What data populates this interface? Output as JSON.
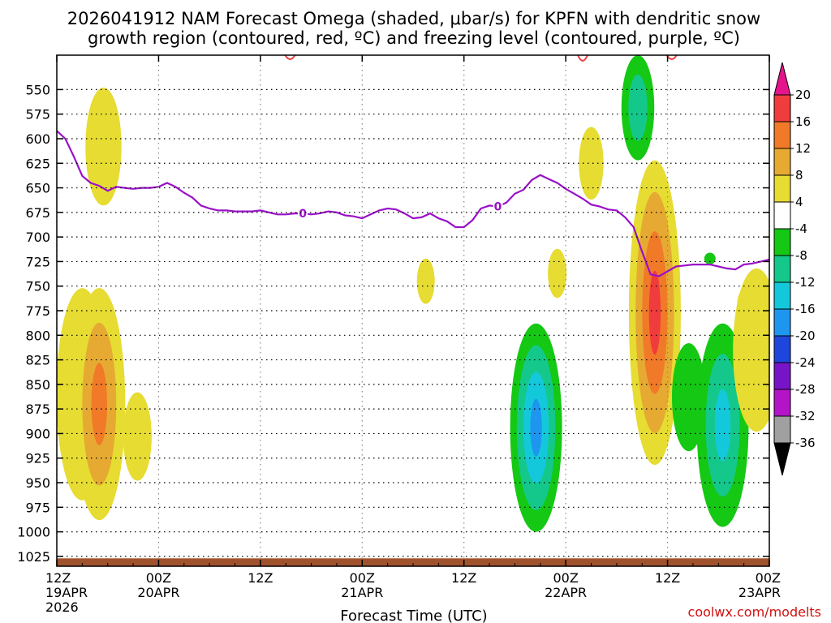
{
  "chart_data": {
    "type": "heatmap",
    "title_line1": "2026041912 NAM Forecast Omega (shaded, μbar/s) for KPFN with dendritic snow",
    "title_line2": "growth region (contoured, red, ºC) and freezing level (contoured, purple, ºC)",
    "xlabel": "Forecast Time (UTC)",
    "credit": "coolwx.com/modelts",
    "y_axis": {
      "unit": "hPa",
      "range": [
        1035,
        515
      ],
      "ticks": [
        550,
        575,
        600,
        625,
        650,
        675,
        700,
        725,
        750,
        775,
        800,
        825,
        850,
        875,
        900,
        925,
        950,
        975,
        1000,
        1025
      ]
    },
    "x_axis": {
      "unit": "forecast hours",
      "range": [
        0,
        84
      ],
      "ticks": [
        {
          "hour": 0,
          "line1": "12Z",
          "line2": "19APR",
          "line3": "2026"
        },
        {
          "hour": 12,
          "line1": "00Z",
          "line2": "20APR",
          "line3": ""
        },
        {
          "hour": 24,
          "line1": "12Z",
          "line2": "",
          "line3": ""
        },
        {
          "hour": 36,
          "line1": "00Z",
          "line2": "21APR",
          "line3": ""
        },
        {
          "hour": 48,
          "line1": "12Z",
          "line2": "",
          "line3": ""
        },
        {
          "hour": 60,
          "line1": "00Z",
          "line2": "22APR",
          "line3": ""
        },
        {
          "hour": 72,
          "line1": "12Z",
          "line2": "",
          "line3": ""
        },
        {
          "hour": 84,
          "line1": "00Z",
          "line2": "23APR",
          "line3": ""
        }
      ]
    },
    "colorbar": {
      "labels": [
        "20",
        "16",
        "12",
        "8",
        "4",
        "-4",
        "-8",
        "-12",
        "-16",
        "-20",
        "-24",
        "-28",
        "-32",
        "-36"
      ],
      "bins": [
        {
          "range": [
            16,
            20
          ],
          "color": "#f03c3c"
        },
        {
          "range": [
            12,
            16
          ],
          "color": "#f07a28"
        },
        {
          "range": [
            8,
            12
          ],
          "color": "#e6aa32"
        },
        {
          "range": [
            4,
            8
          ],
          "color": "#e6dc32"
        },
        {
          "range": [
            -4,
            4
          ],
          "color": "#ffffff"
        },
        {
          "range": [
            -8,
            -4
          ],
          "color": "#14c814"
        },
        {
          "range": [
            -12,
            -8
          ],
          "color": "#14c88c"
        },
        {
          "range": [
            -16,
            -12
          ],
          "color": "#14c8dc"
        },
        {
          "range": [
            -20,
            -16
          ],
          "color": "#1e96f0"
        },
        {
          "range": [
            -24,
            -20
          ],
          "color": "#1e46dc"
        },
        {
          "range": [
            -28,
            -24
          ],
          "color": "#7814c8"
        },
        {
          "range": [
            -32,
            -28
          ],
          "color": "#b414c8"
        },
        {
          "range": [
            -36,
            -32
          ],
          "color": "#a0a0a0"
        }
      ],
      "top_arrow_color": "#e6148c",
      "bottom_arrow_color": "#000000"
    },
    "omega_features": [
      {
        "hour": 5.5,
        "p_top": 548,
        "p_bottom": 668,
        "peak": 6
      },
      {
        "hour": 3.0,
        "p_top": 752,
        "p_bottom": 968,
        "peak": 6
      },
      {
        "hour": 5.0,
        "p_top": 752,
        "p_bottom": 988,
        "peak": 14
      },
      {
        "hour": 9.5,
        "p_top": 858,
        "p_bottom": 948,
        "peak": 6
      },
      {
        "hour": 43.5,
        "p_top": 722,
        "p_bottom": 768,
        "peak": 6
      },
      {
        "hour": 56.5,
        "p_top": 788,
        "p_bottom": 1000,
        "peak": -18
      },
      {
        "hour": 59.0,
        "p_top": 712,
        "p_bottom": 762,
        "peak": 6
      },
      {
        "hour": 63.0,
        "p_top": 588,
        "p_bottom": 662,
        "peak": 6
      },
      {
        "hour": 68.5,
        "p_top": 515,
        "p_bottom": 622,
        "peak": -12
      },
      {
        "hour": 70.5,
        "p_top": 622,
        "p_bottom": 932,
        "peak": 18
      },
      {
        "hour": 74.5,
        "p_top": 808,
        "p_bottom": 918,
        "peak": -6
      },
      {
        "hour": 78.5,
        "p_top": 788,
        "p_bottom": 995,
        "peak": -14
      },
      {
        "hour": 77.0,
        "p_top": 716,
        "p_bottom": 728,
        "peak": -6
      },
      {
        "hour": 82.5,
        "p_top": 732,
        "p_bottom": 898,
        "peak": 6
      },
      {
        "hour": 81.0,
        "p_top": 754,
        "p_bottom": 782,
        "peak": 6
      }
    ],
    "freezing_level": {
      "label": "0",
      "label_hours": [
        29,
        52
      ],
      "hour": [
        0,
        1,
        2,
        3,
        4,
        5,
        6,
        7,
        8,
        9,
        10,
        11,
        12,
        13,
        14,
        15,
        16,
        17,
        18,
        19,
        20,
        21,
        22,
        23,
        24,
        25,
        26,
        27,
        28,
        29,
        30,
        31,
        32,
        33,
        34,
        35,
        36,
        37,
        38,
        39,
        40,
        41,
        42,
        43,
        44,
        45,
        46,
        47,
        48,
        49,
        50,
        51,
        52,
        53,
        54,
        55,
        56,
        57,
        58,
        59,
        60,
        61,
        62,
        63,
        64,
        65,
        66,
        67,
        68,
        69,
        70,
        71,
        72,
        73,
        74,
        75,
        76,
        77,
        78,
        79,
        80,
        81,
        82,
        83,
        84
      ],
      "pressure": [
        592,
        600,
        618,
        638,
        645,
        648,
        653,
        649,
        650,
        651,
        650,
        650,
        649,
        645,
        649,
        655,
        660,
        668,
        671,
        673,
        673,
        674,
        674,
        674,
        673,
        675,
        677,
        677,
        676,
        676,
        677,
        676,
        674,
        675,
        678,
        679,
        681,
        677,
        673,
        671,
        672,
        676,
        681,
        680,
        676,
        681,
        684,
        690,
        690,
        683,
        671,
        668,
        669,
        665,
        656,
        652,
        642,
        637,
        641,
        645,
        651,
        656,
        661,
        667,
        669,
        672,
        673,
        680,
        690,
        715,
        738,
        740,
        735,
        730,
        729,
        728,
        728,
        728,
        730,
        732,
        733,
        728,
        727,
        725,
        723
      ]
    },
    "dgz_fragments": [
      {
        "hour": 27.5,
        "p_top": 515,
        "p_bottom": 520
      },
      {
        "hour": 62.0,
        "p_top": 515,
        "p_bottom": 523
      },
      {
        "hour": 72.5,
        "p_top": 515,
        "p_bottom": 520
      }
    ],
    "ground_pressure": [
      1027,
      1029
    ],
    "ground_color": "#a0522d"
  }
}
